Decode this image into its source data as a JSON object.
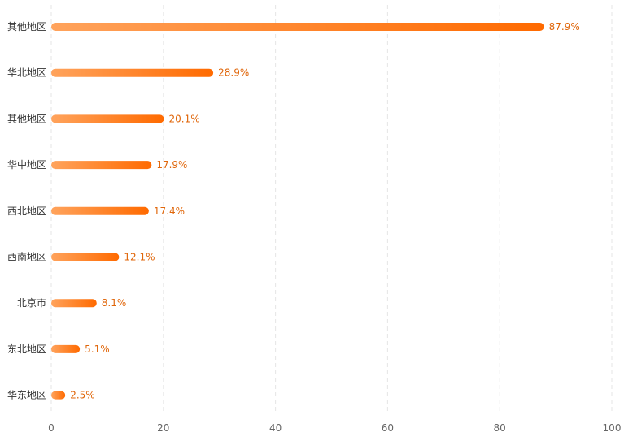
{
  "chart_data": {
    "type": "bar",
    "orientation": "horizontal",
    "title": "",
    "xlabel": "",
    "ylabel": "",
    "categories": [
      "其他地区",
      "华北地区",
      "其他地区",
      "华中地区",
      "西北地区",
      "西南地区",
      "北京市",
      "东北地区",
      "华东地区"
    ],
    "values": [
      87.9,
      28.9,
      20.1,
      17.9,
      17.4,
      12.1,
      8.1,
      5.1,
      2.5
    ],
    "value_labels": [
      "87.9%",
      "28.9%",
      "20.1%",
      "17.9%",
      "17.4%",
      "12.1%",
      "8.1%",
      "5.1%",
      "2.5%"
    ],
    "xlim": [
      0,
      100
    ],
    "xticks": [
      0,
      20,
      40,
      60,
      80,
      100
    ],
    "xtick_labels": [
      "0",
      "20",
      "40",
      "60",
      "80",
      "100"
    ],
    "grid": "vertical dashed",
    "legend": "none",
    "colors": {
      "bar_gradient_start": "#ffa35c",
      "bar_gradient_end": "#ff6a00",
      "value_label": "#e0660a",
      "category_label": "#333333",
      "tick_label": "#666666",
      "grid": "#e6e6e6"
    }
  }
}
